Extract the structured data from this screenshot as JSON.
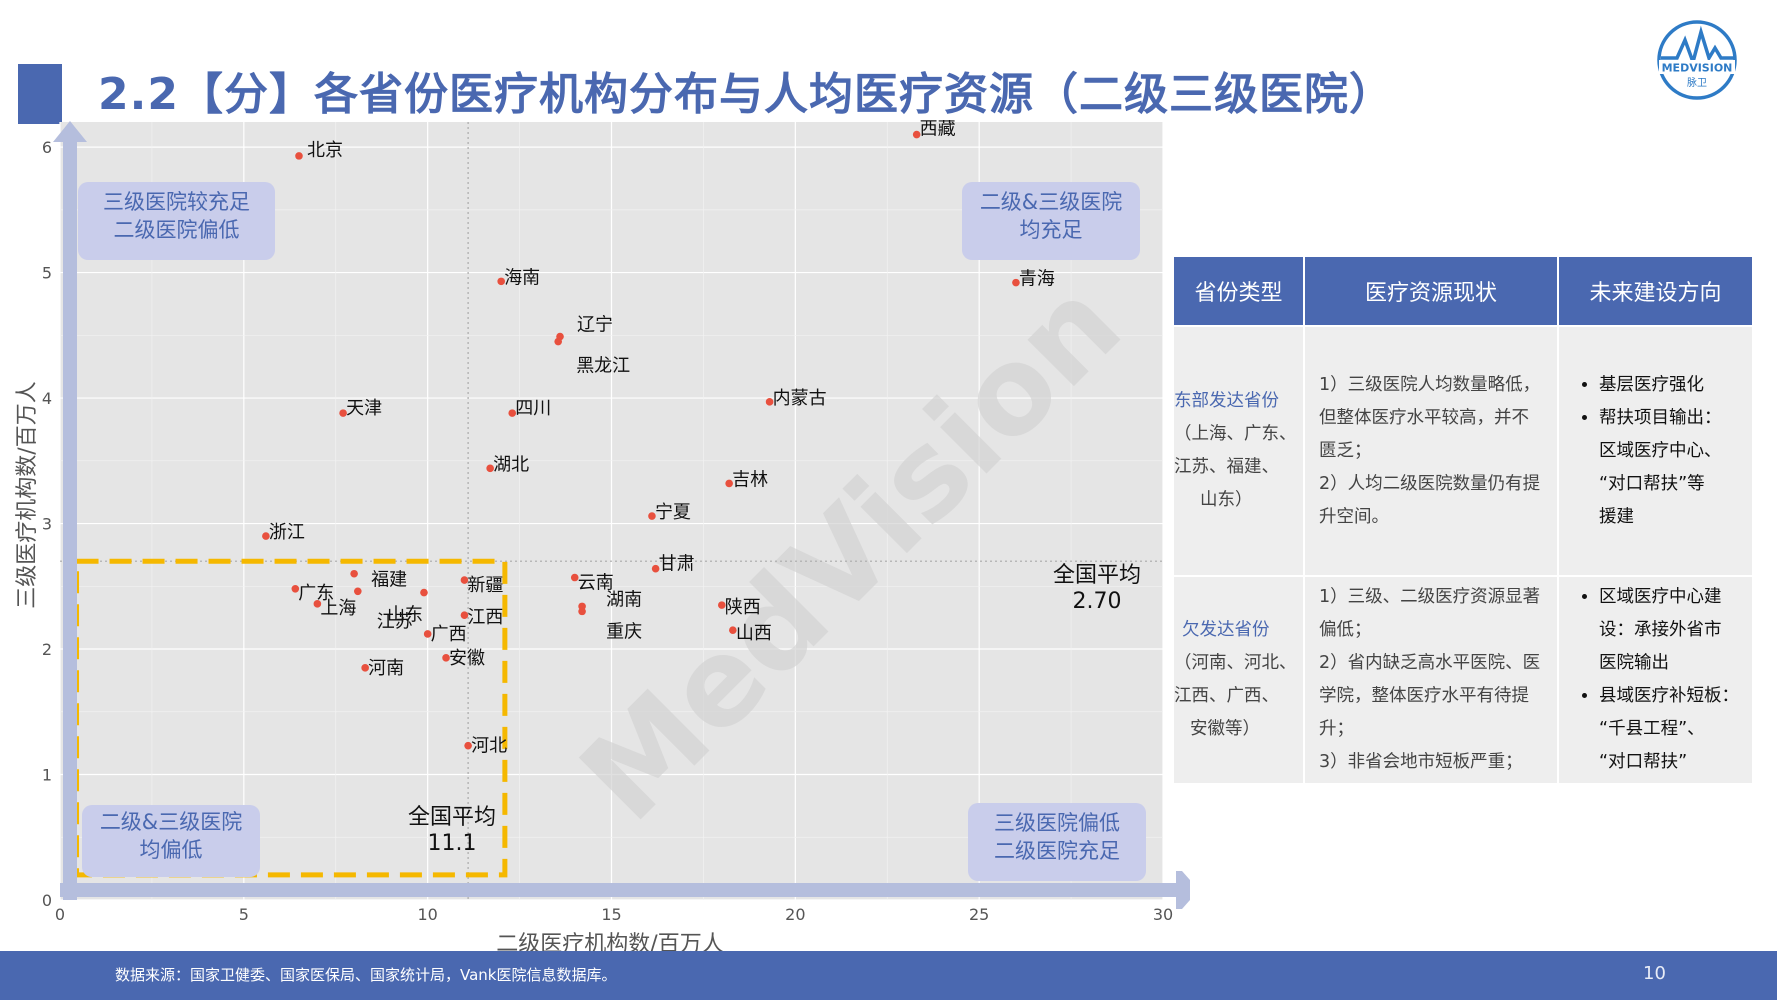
{
  "title": "2.2【分】各省份医疗机构分布与人均医疗资源（二级三级医院）",
  "logo": {
    "brand": "MEDVISION",
    "sub": "脉卫"
  },
  "watermark": "MedVision",
  "colors": {
    "accent": "#4A68B0",
    "point": "#E8503E",
    "dash": "#F5B800",
    "panel": "#E5E5E5",
    "quad_box": "#C9CDEB",
    "quad_text": "#4A68B0"
  },
  "chart_data": {
    "type": "scatter",
    "xlabel": "二级医疗机构数/百万人",
    "ylabel": "三级医疗机构数/百万人",
    "xlim": [
      0,
      30
    ],
    "ylim": [
      0,
      6.2
    ],
    "x_ticks": [
      0,
      5,
      10,
      15,
      20,
      25,
      30
    ],
    "y_ticks": [
      0,
      1,
      2,
      3,
      4,
      5,
      6
    ],
    "grid": true,
    "points": [
      {
        "label": "西藏",
        "x": 23.3,
        "y": 6.1
      },
      {
        "label": "北京",
        "x": 6.5,
        "y": 5.93
      },
      {
        "label": "海南",
        "x": 12.0,
        "y": 4.93
      },
      {
        "label": "青海",
        "x": 26.0,
        "y": 4.92
      },
      {
        "label": "辽宁",
        "x": 13.6,
        "y": 4.49
      },
      {
        "label": "黑龙江",
        "x": 13.55,
        "y": 4.45
      },
      {
        "label": "内蒙古",
        "x": 19.3,
        "y": 3.97
      },
      {
        "label": "天津",
        "x": 7.7,
        "y": 3.88
      },
      {
        "label": "四川",
        "x": 12.3,
        "y": 3.88
      },
      {
        "label": "湖北",
        "x": 11.7,
        "y": 3.44
      },
      {
        "label": "吉林",
        "x": 18.2,
        "y": 3.32
      },
      {
        "label": "宁夏",
        "x": 16.1,
        "y": 3.06
      },
      {
        "label": "浙江",
        "x": 5.6,
        "y": 2.9
      },
      {
        "label": "甘肃",
        "x": 16.2,
        "y": 2.64
      },
      {
        "label": "福建",
        "x": 8.0,
        "y": 2.6
      },
      {
        "label": "云南",
        "x": 14.0,
        "y": 2.57
      },
      {
        "label": "新疆",
        "x": 11.0,
        "y": 2.55
      },
      {
        "label": "广东",
        "x": 6.4,
        "y": 2.48
      },
      {
        "label": "江苏",
        "x": 8.1,
        "y": 2.46
      },
      {
        "label": "山东",
        "x": 9.9,
        "y": 2.45
      },
      {
        "label": "上海",
        "x": 7.0,
        "y": 2.36
      },
      {
        "label": "陕西",
        "x": 18.0,
        "y": 2.35
      },
      {
        "label": "湖南",
        "x": 14.2,
        "y": 2.34
      },
      {
        "label": "重庆",
        "x": 14.2,
        "y": 2.3
      },
      {
        "label": "江西",
        "x": 11.0,
        "y": 2.27
      },
      {
        "label": "山西",
        "x": 18.3,
        "y": 2.15
      },
      {
        "label": "广西",
        "x": 10.0,
        "y": 2.12
      },
      {
        "label": "安徽",
        "x": 10.5,
        "y": 1.93
      },
      {
        "label": "河南",
        "x": 8.3,
        "y": 1.85
      },
      {
        "label": "河北",
        "x": 11.1,
        "y": 1.23
      }
    ],
    "avg_x": 11.1,
    "avg_y": 2.7,
    "avg_x_label": [
      "全国平均",
      "11.1"
    ],
    "avg_y_label": [
      "全国平均",
      "2.70"
    ],
    "quadrants": {
      "top_left": [
        "三级医院较充足",
        "二级医院偏低"
      ],
      "top_right": [
        "二级&三级医院",
        "均充足"
      ],
      "bottom_left": [
        "二级&三级医院",
        "均偏低"
      ],
      "bottom_right": [
        "三级医院偏低",
        "二级医院充足"
      ]
    }
  },
  "table": {
    "headers": [
      "省份类型",
      "医疗资源现状",
      "未来建设方向"
    ],
    "rows": [
      {
        "type": [
          "东部发达省份",
          "（上海、广东、",
          "江苏、福建、",
          "山东）"
        ],
        "status": [
          "1）三级医院人均数量略低，",
          "但整体医疗水平较高，并不",
          "匮乏；",
          "2）人均二级医院数量仍有提",
          "升空间。"
        ],
        "direction": [
          [
            "基层医疗强化"
          ],
          [
            "帮扶项目输出：",
            "区域医疗中心、",
            "“对口帮扶”等",
            "援建"
          ]
        ]
      },
      {
        "type": [
          "欠发达省份",
          "（河南、河北、",
          "江西、广西、",
          "安徽等）"
        ],
        "status": [
          "1）三级、二级医疗资源显著",
          "偏低；",
          "2）省内缺乏高水平医院、医",
          "学院，整体医疗水平有待提",
          "升；",
          "3）非省会地市短板严重；"
        ],
        "direction": [
          [
            "区域医疗中心建",
            "设：承接外省市",
            "医院输出"
          ],
          [
            "县域医疗补短板：",
            "“千县工程”、",
            "“对口帮扶”"
          ]
        ]
      }
    ]
  },
  "footer": {
    "source": "数据来源：国家卫健委、国家医保局、国家统计局，Vank医院信息数据库。",
    "page": "10"
  }
}
